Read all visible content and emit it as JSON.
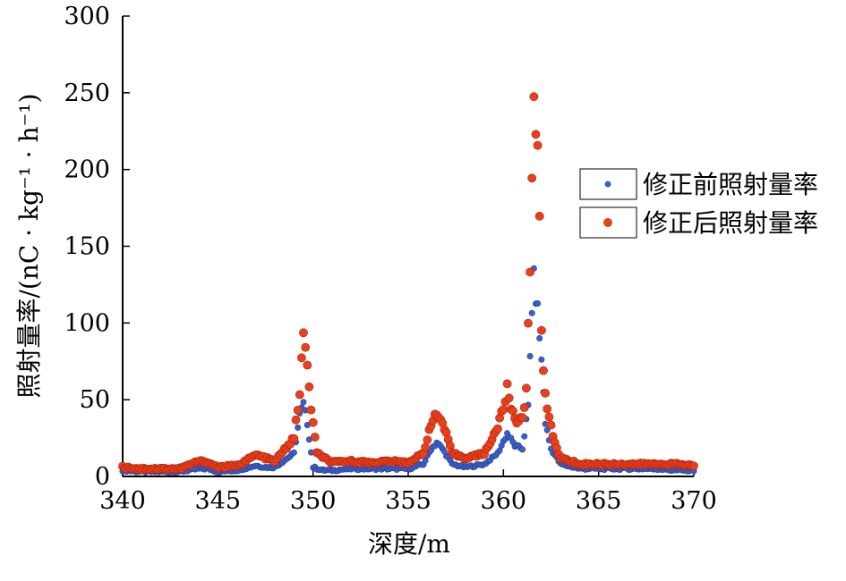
{
  "chart_data": {
    "type": "scatter",
    "title": "",
    "xlabel": "深度/m",
    "ylabel": "照射量率/(nC · kg⁻¹ · h⁻¹)",
    "xlim": [
      340,
      370
    ],
    "ylim": [
      0,
      300
    ],
    "x_ticks": [
      "340",
      "345",
      "350",
      "355",
      "360",
      "365",
      "370"
    ],
    "y_ticks": [
      "0",
      "50",
      "100",
      "150",
      "200",
      "250",
      "300"
    ],
    "grid": false,
    "legend_position": "right",
    "series": [
      {
        "name": "修正前照射量率",
        "color": "#3a5fcd",
        "x": [
          340,
          341,
          342,
          343,
          344,
          344.5,
          345,
          346,
          347,
          347.5,
          348,
          349,
          349.3,
          349.5,
          349.7,
          350,
          350.5,
          351,
          352,
          353,
          354,
          355,
          355.8,
          356.2,
          356.5,
          356.8,
          357.3,
          358,
          359,
          359.7,
          360.2,
          360.6,
          361,
          361.3,
          361.5,
          361.6,
          361.8,
          362,
          362.2,
          362.5,
          363,
          364,
          365,
          366,
          367,
          368,
          369,
          370
        ],
        "y": [
          4,
          3,
          3,
          3,
          5,
          5,
          3,
          4,
          7,
          6,
          6,
          15,
          40,
          47,
          35,
          6,
          4,
          4,
          5,
          5,
          5,
          5,
          8,
          18,
          22,
          18,
          8,
          6,
          8,
          15,
          28,
          20,
          18,
          45,
          110,
          128,
          108,
          75,
          35,
          18,
          8,
          5,
          5,
          5,
          5,
          5,
          4,
          4
        ]
      },
      {
        "name": "修正后照射量率",
        "color": "#e8401c",
        "x": [
          340,
          341,
          342,
          343,
          344,
          344.5,
          345,
          346,
          347,
          347.5,
          348,
          349,
          349.3,
          349.4,
          349.5,
          349.6,
          349.7,
          349.9,
          350.2,
          351,
          352,
          353,
          354,
          355,
          355.8,
          356.2,
          356.5,
          356.8,
          357.3,
          358,
          359,
          359.7,
          360,
          360.2,
          360.4,
          360.7,
          361,
          361.2,
          361.4,
          361.5,
          361.6,
          361.7,
          361.8,
          361.9,
          362,
          362.1,
          362.3,
          362.6,
          363,
          364,
          365,
          366,
          367,
          368,
          369,
          370
        ],
        "y": [
          6,
          5,
          5,
          5,
          10,
          9,
          6,
          7,
          14,
          12,
          10,
          25,
          55,
          75,
          90,
          85,
          70,
          45,
          15,
          9,
          10,
          9,
          10,
          9,
          15,
          35,
          40,
          35,
          15,
          12,
          15,
          32,
          45,
          57,
          45,
          35,
          40,
          55,
          136,
          184,
          251,
          234,
          205,
          168,
          100,
          70,
          45,
          25,
          12,
          8,
          8,
          8,
          8,
          8,
          8,
          7
        ]
      }
    ]
  }
}
